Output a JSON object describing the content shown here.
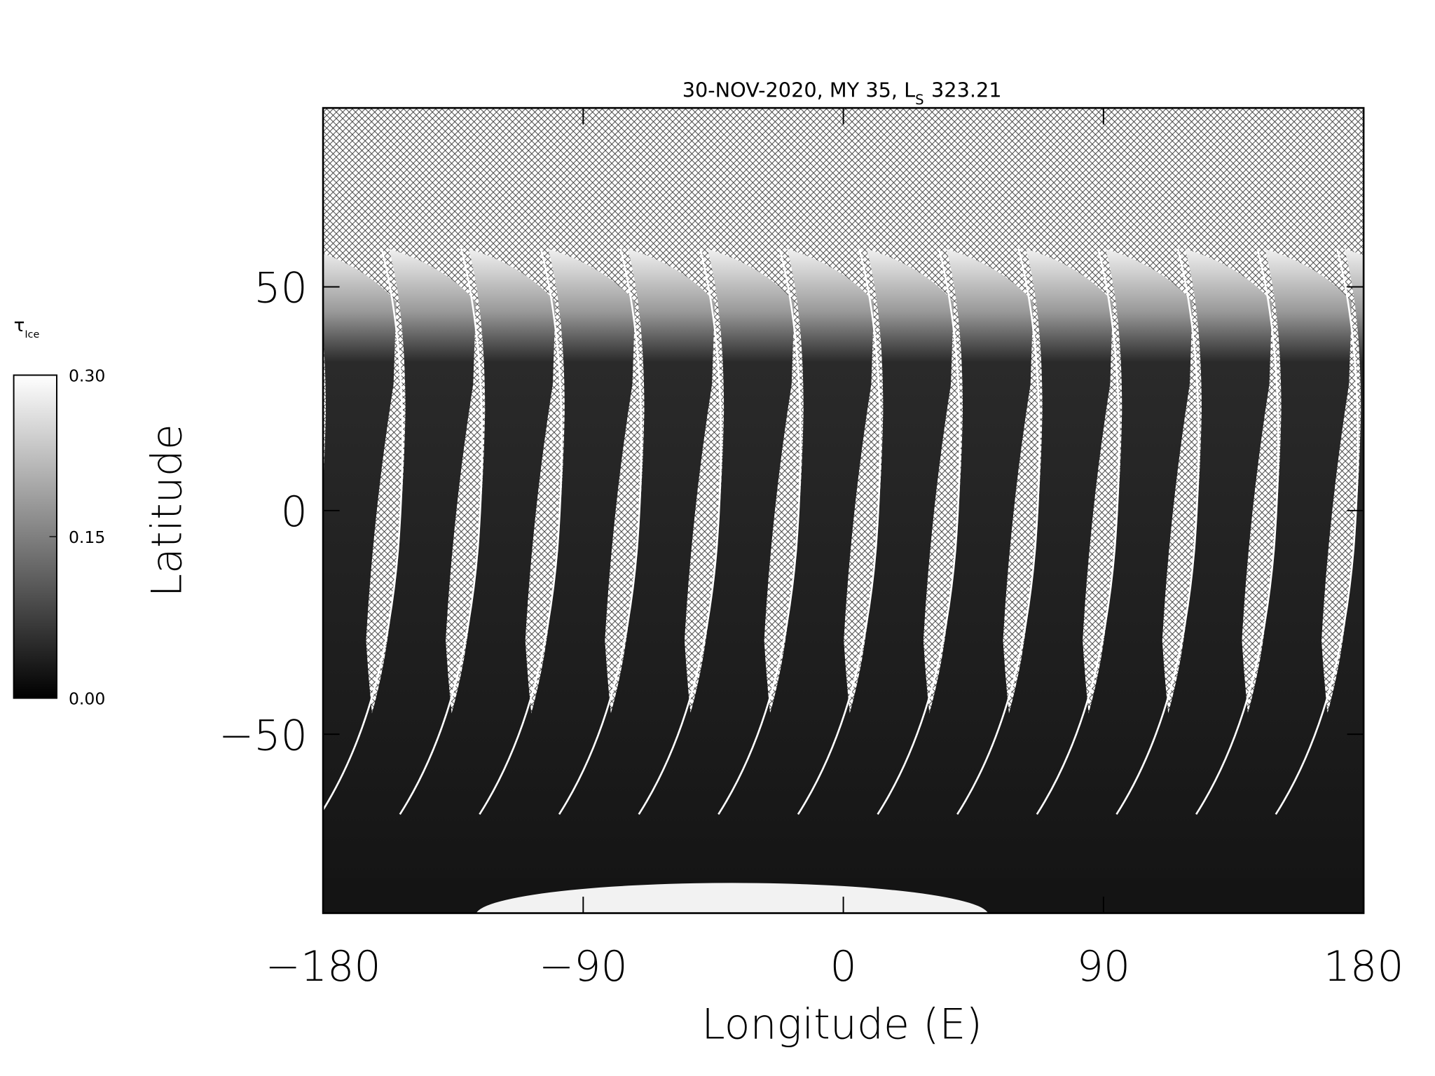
{
  "chart_data": {
    "type": "map",
    "title": {
      "text": "30-NOV-2020, MY 35,  L",
      "subscript": "S",
      "suffix": "323.21"
    },
    "xlabel": "Longitude (E)",
    "ylabel": "Latitude",
    "xlim": [
      -180,
      180
    ],
    "ylim": [
      -90,
      90
    ],
    "xticks": [
      {
        "value": -180,
        "label": "−180"
      },
      {
        "value": -90,
        "label": "−90"
      },
      0,
      90,
      180
    ],
    "yticks": [
      {
        "value": -50,
        "label": "−50"
      },
      0,
      50
    ],
    "colorbar": {
      "label": {
        "symbol": "τ",
        "subscript": "Ice"
      },
      "lim": [
        0,
        0.3
      ],
      "ticks": [
        {
          "value": 0,
          "label": "0.00"
        },
        {
          "value": 0.15,
          "label": "0.15"
        },
        {
          "value": 0.3,
          "label": "0.30"
        }
      ],
      "colors": [
        "#000000",
        "#ffffff"
      ]
    }
  }
}
